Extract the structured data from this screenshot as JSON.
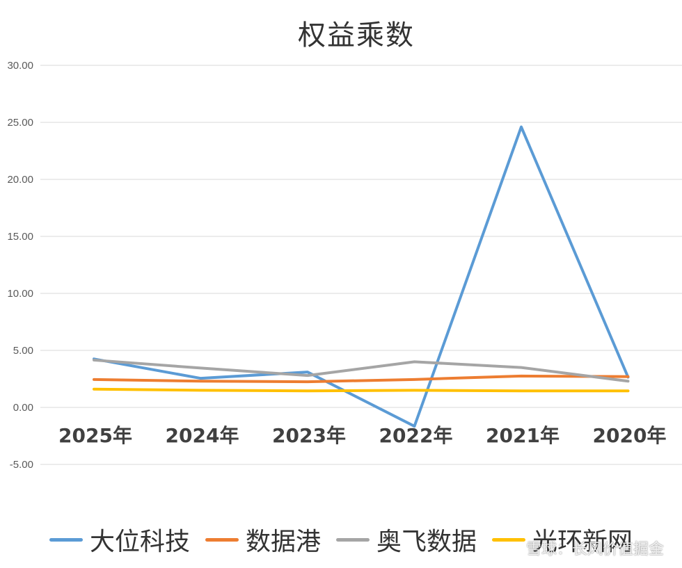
{
  "chart_data": {
    "type": "line",
    "title": "权益乘数",
    "xlabel": "",
    "ylabel": "",
    "categories": [
      "2025年",
      "2024年",
      "2023年",
      "2022年",
      "2021年",
      "2020年"
    ],
    "ylim": [
      -5,
      30
    ],
    "yticks": [
      "30.00",
      "25.00",
      "20.00",
      "15.00",
      "10.00",
      "5.00",
      "0.00",
      "-5.00"
    ],
    "ytick_values": [
      30,
      25,
      20,
      15,
      10,
      5,
      0,
      -5
    ],
    "grid": true,
    "legend_position": "bottom",
    "series": [
      {
        "name": "大位科技",
        "color": "#5B9BD5",
        "values": [
          4.25,
          2.55,
          3.1,
          -1.65,
          24.6,
          2.65
        ]
      },
      {
        "name": "数据港",
        "color": "#ED7D31",
        "values": [
          2.45,
          2.3,
          2.25,
          2.45,
          2.75,
          2.7
        ]
      },
      {
        "name": "奥飞数据",
        "color": "#A5A5A5",
        "values": [
          4.15,
          3.45,
          2.8,
          4.0,
          3.5,
          2.3
        ]
      },
      {
        "name": "光环新网",
        "color": "#FFC000",
        "values": [
          1.6,
          1.5,
          1.45,
          1.5,
          1.45,
          1.45
        ]
      }
    ]
  },
  "watermark": "雪球：长风价值掘金"
}
